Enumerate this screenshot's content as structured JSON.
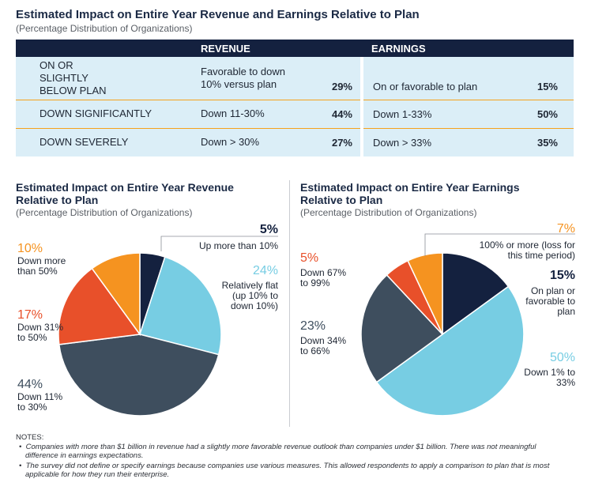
{
  "header": {
    "title": "Estimated Impact on Entire Year Revenue and Earnings Relative to Plan",
    "subtitle": "(Percentage Distribution of Organizations)"
  },
  "table": {
    "col_revenue": "REVENUE",
    "col_earnings": "EARNINGS",
    "rows": [
      {
        "category": "ON OR SLIGHTLY BELOW PLAN",
        "revenue_desc": "Favorable to down 10% versus plan",
        "revenue_pct": "29%",
        "earnings_desc": "On or favorable to plan",
        "earnings_pct": "15%"
      },
      {
        "category": "DOWN SIGNIFICANTLY",
        "revenue_desc": "Down 11-30%",
        "revenue_pct": "44%",
        "earnings_desc": "Down 1-33%",
        "earnings_pct": "50%"
      },
      {
        "category": "DOWN SEVERELY",
        "revenue_desc": "Down > 30%",
        "revenue_pct": "27%",
        "earnings_desc": "Down > 33%",
        "earnings_pct": "35%"
      }
    ]
  },
  "chart_data": [
    {
      "type": "pie",
      "title": "Estimated Impact on Entire Year Revenue Relative to Plan",
      "subtitle": "(Percentage Distribution of Organizations)",
      "slices": [
        {
          "value": 5,
          "pct_label": "5%",
          "label": "Up more than 10%",
          "color": "#14213f"
        },
        {
          "value": 24,
          "pct_label": "24%",
          "label": "Relatively flat (up 10% to down 10%)",
          "color": "#77cde3"
        },
        {
          "value": 44,
          "pct_label": "44%",
          "label": "Down 11% to 30%",
          "color": "#3e4e5e"
        },
        {
          "value": 17,
          "pct_label": "17%",
          "label": "Down 31% to 50%",
          "color": "#e8502a"
        },
        {
          "value": 10,
          "pct_label": "10%",
          "label": "Down more than 50%",
          "color": "#f59320"
        }
      ]
    },
    {
      "type": "pie",
      "title": "Estimated Impact on Entire Year Earnings Relative to Plan",
      "subtitle": "(Percentage Distribution of Organizations)",
      "slices": [
        {
          "value": 15,
          "pct_label": "15%",
          "label": "On plan or favorable to plan",
          "color": "#14213f"
        },
        {
          "value": 50,
          "pct_label": "50%",
          "label": "Down 1% to 33%",
          "color": "#77cde3"
        },
        {
          "value": 23,
          "pct_label": "23%",
          "label": "Down 34% to 66%",
          "color": "#3e4e5e"
        },
        {
          "value": 5,
          "pct_label": "5%",
          "label": "Down 67% to 99%",
          "color": "#e8502a"
        },
        {
          "value": 7,
          "pct_label": "7%",
          "label": "100% or more (loss for this time period)",
          "color": "#f59320"
        }
      ]
    }
  ],
  "notes": {
    "heading": "NOTES:",
    "items": [
      "Companies with more than $1 billion in revenue had a slightly more favorable revenue outlook than companies under $1 billion. There was not meaningful difference in earnings expectations.",
      "The survey did not define or specify earnings because companies use various measures. This allowed respondents to apply a comparison to plan that is most applicable for how they run their enterprise."
    ]
  }
}
